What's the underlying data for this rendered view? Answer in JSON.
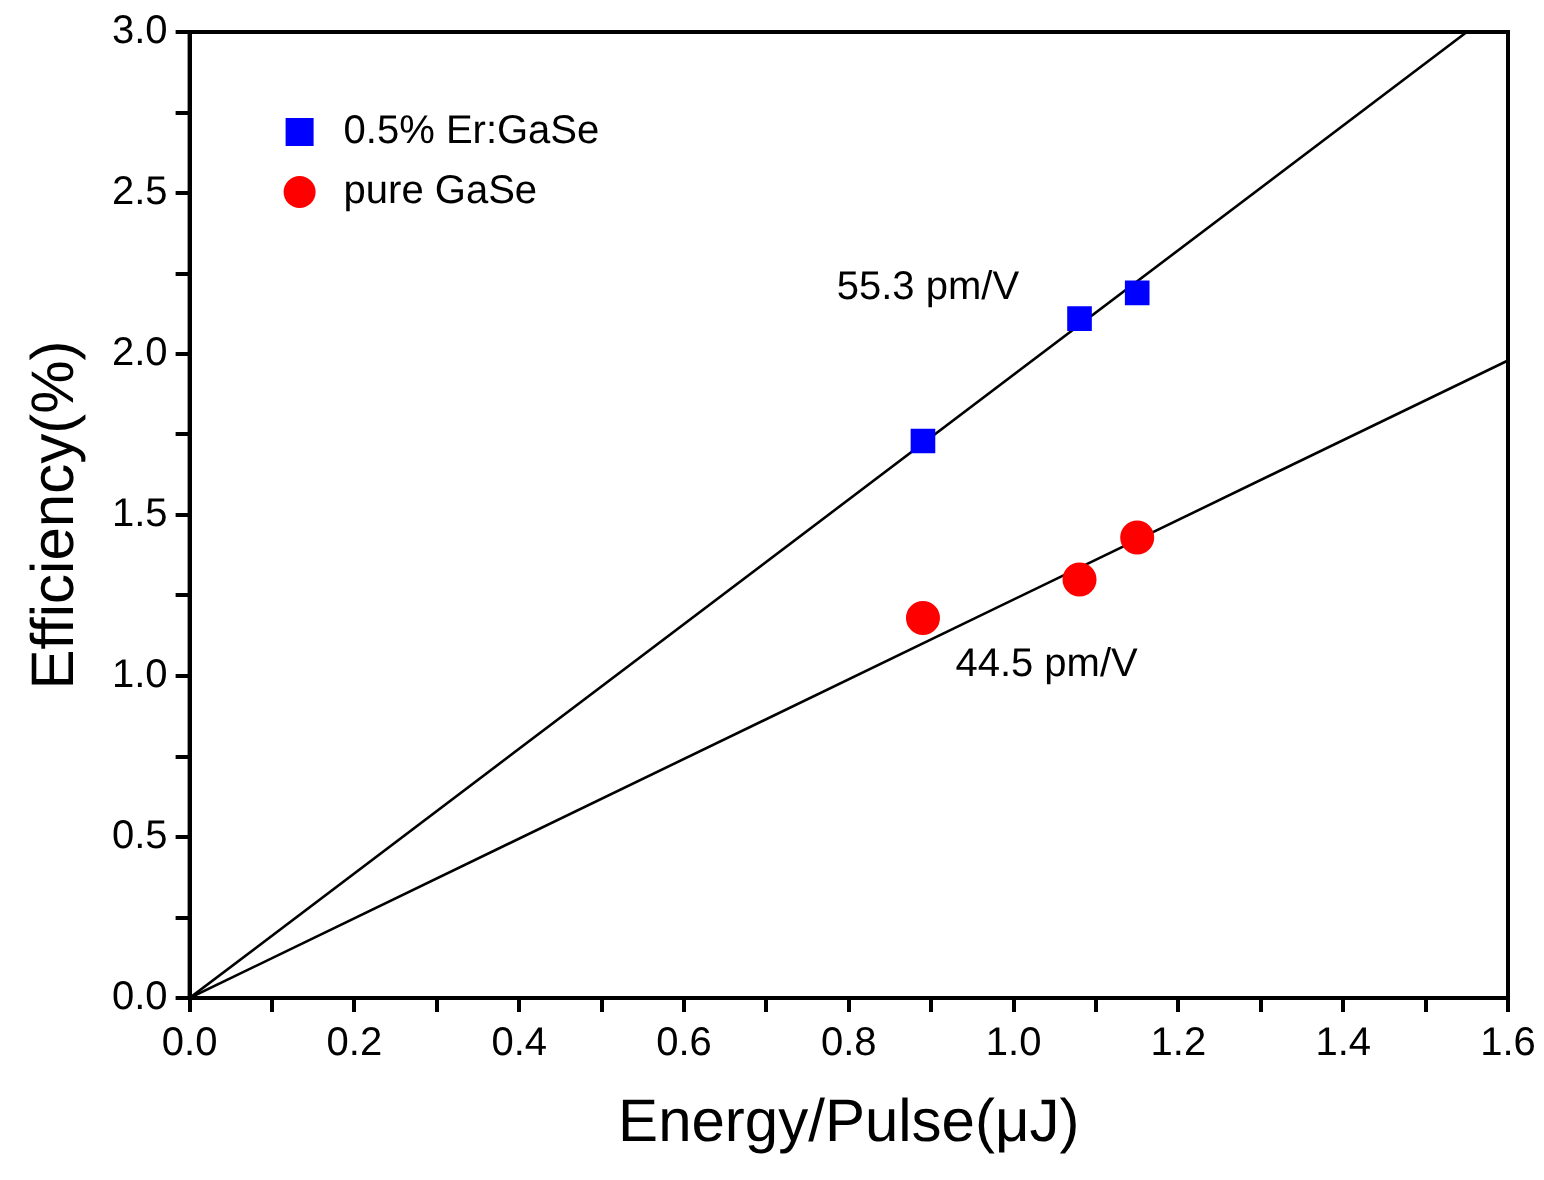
{
  "chart_data": {
    "type": "scatter",
    "xlabel": "Energy/Pulse(μJ)",
    "ylabel": "Efficiency(%)",
    "xlim": [
      0,
      1.6
    ],
    "ylim": [
      0,
      3.0
    ],
    "xticks": [
      {
        "value": 0,
        "label": "0.0"
      },
      {
        "value": 0.1,
        "label": null
      },
      {
        "value": 0.2,
        "label": "0.2"
      },
      {
        "value": 0.3,
        "label": null
      },
      {
        "value": 0.4,
        "label": "0.4"
      },
      {
        "value": 0.5,
        "label": null
      },
      {
        "value": 0.6,
        "label": "0.6"
      },
      {
        "value": 0.7,
        "label": null
      },
      {
        "value": 0.8,
        "label": "0.8"
      },
      {
        "value": 0.9,
        "label": null
      },
      {
        "value": 1,
        "label": "1.0"
      },
      {
        "value": 1.1,
        "label": null
      },
      {
        "value": 1.2,
        "label": "1.2"
      },
      {
        "value": 1.3,
        "label": null
      },
      {
        "value": 1.4,
        "label": "1.4"
      },
      {
        "value": 1.5,
        "label": null
      },
      {
        "value": 1.6,
        "label": "1.6"
      }
    ],
    "yticks": [
      {
        "value": 0,
        "label": "0.0"
      },
      {
        "value": 0.25,
        "label": null
      },
      {
        "value": 0.5,
        "label": "0.5"
      },
      {
        "value": 0.75,
        "label": null
      },
      {
        "value": 1,
        "label": "1.0"
      },
      {
        "value": 1.25,
        "label": null
      },
      {
        "value": 1.5,
        "label": "1.5"
      },
      {
        "value": 1.75,
        "label": null
      },
      {
        "value": 2,
        "label": "2.0"
      },
      {
        "value": 2.25,
        "label": null
      },
      {
        "value": 2.5,
        "label": "2.5"
      },
      {
        "value": 2.75,
        "label": null
      },
      {
        "value": 3,
        "label": "3.0"
      }
    ],
    "grid": false,
    "legend": "top left",
    "series": [
      {
        "name": "0.5% Er:GaSe",
        "color": "#0000ff",
        "marker": "square",
        "x": [
          0.89,
          1.08,
          1.15
        ],
        "values": [
          1.73,
          2.11,
          2.19
        ]
      },
      {
        "name": "pure GaSe",
        "color": "#ff0000",
        "marker": "circle",
        "x": [
          0.89,
          1.08,
          1.15
        ],
        "values": [
          1.18,
          1.3,
          1.43
        ]
      },
      {
        "type": "line",
        "color": "#000000",
        "marker": "none",
        "x": [
          0,
          1.55
        ],
        "values": [
          0,
          3.0
        ]
      },
      {
        "type": "line",
        "color": "#000000",
        "marker": "none",
        "x": [
          0,
          1.6
        ],
        "values": [
          0,
          1.98
        ]
      }
    ],
    "annotations": [
      "55.3 pm/V",
      "44.5 pm/V"
    ]
  }
}
